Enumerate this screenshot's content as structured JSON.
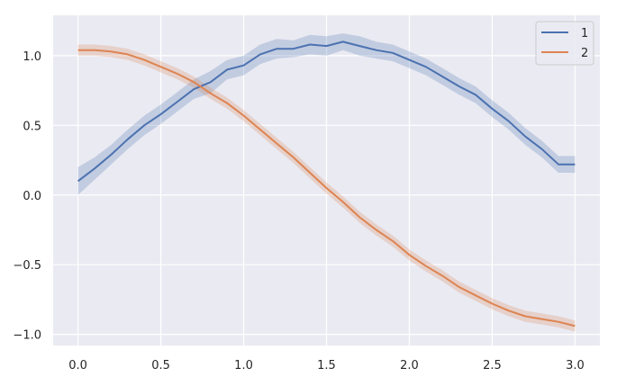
{
  "chart_data": {
    "type": "line",
    "title": "",
    "xlabel": "",
    "ylabel": "",
    "xlim": [
      -0.15,
      3.15
    ],
    "ylim": [
      -1.08,
      1.29
    ],
    "xticks": [
      0.0,
      0.5,
      1.0,
      1.5,
      2.0,
      2.5,
      3.0
    ],
    "xtick_labels": [
      "0.0",
      "0.5",
      "1.0",
      "1.5",
      "2.0",
      "2.5",
      "3.0"
    ],
    "yticks": [
      -1.0,
      -0.5,
      0.0,
      0.5,
      1.0
    ],
    "ytick_labels": [
      "−1.0",
      "−0.5",
      "0.0",
      "0.5",
      "1.0"
    ],
    "grid": true,
    "background": "#eaeaf2",
    "legend_position": "top-right",
    "x": [
      0.0,
      0.1,
      0.2,
      0.3,
      0.4,
      0.5,
      0.6,
      0.7,
      0.8,
      0.9,
      1.0,
      1.1,
      1.2,
      1.3,
      1.4,
      1.5,
      1.6,
      1.7,
      1.8,
      1.9,
      2.0,
      2.1,
      2.2,
      2.3,
      2.4,
      2.5,
      2.6,
      2.7,
      2.8,
      2.9,
      3.0
    ],
    "series": [
      {
        "name": "1",
        "color": "#4c72b0",
        "values": [
          0.1,
          0.19,
          0.29,
          0.4,
          0.5,
          0.58,
          0.67,
          0.76,
          0.81,
          0.9,
          0.93,
          1.01,
          1.05,
          1.05,
          1.08,
          1.07,
          1.1,
          1.07,
          1.04,
          1.02,
          0.97,
          0.92,
          0.85,
          0.78,
          0.72,
          0.62,
          0.53,
          0.42,
          0.33,
          0.22,
          0.22
        ],
        "band": [
          0.1,
          0.08,
          0.07,
          0.07,
          0.07,
          0.07,
          0.07,
          0.07,
          0.08,
          0.07,
          0.07,
          0.07,
          0.07,
          0.06,
          0.07,
          0.07,
          0.06,
          0.07,
          0.06,
          0.06,
          0.06,
          0.06,
          0.06,
          0.06,
          0.06,
          0.06,
          0.06,
          0.06,
          0.06,
          0.06,
          0.06
        ]
      },
      {
        "name": "2",
        "color": "#dd8452",
        "values": [
          1.04,
          1.04,
          1.03,
          1.01,
          0.97,
          0.92,
          0.87,
          0.81,
          0.73,
          0.66,
          0.57,
          0.47,
          0.37,
          0.27,
          0.16,
          0.05,
          -0.05,
          -0.16,
          -0.25,
          -0.33,
          -0.43,
          -0.51,
          -0.58,
          -0.66,
          -0.72,
          -0.78,
          -0.83,
          -0.87,
          -0.89,
          -0.91,
          -0.94
        ],
        "band": [
          0.04,
          0.04,
          0.04,
          0.04,
          0.04,
          0.04,
          0.04,
          0.04,
          0.04,
          0.04,
          0.04,
          0.04,
          0.04,
          0.04,
          0.04,
          0.04,
          0.04,
          0.04,
          0.04,
          0.04,
          0.04,
          0.04,
          0.04,
          0.04,
          0.04,
          0.04,
          0.04,
          0.04,
          0.04,
          0.04,
          0.04
        ]
      }
    ]
  }
}
